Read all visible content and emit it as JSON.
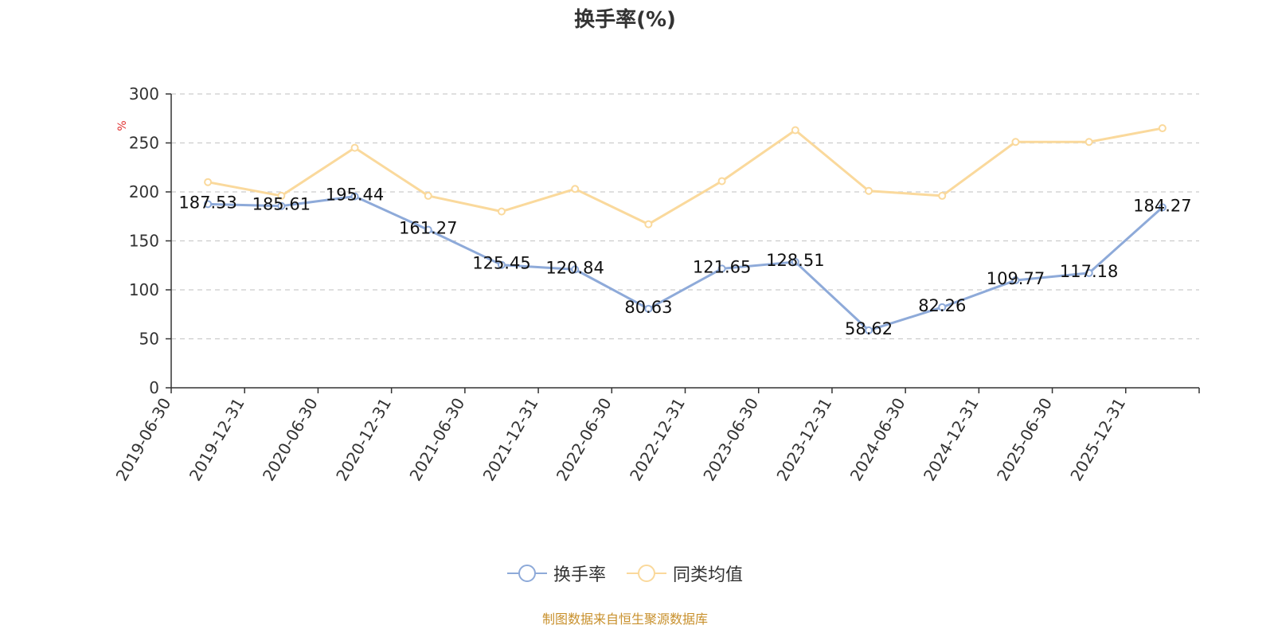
{
  "chart_data": {
    "type": "line",
    "title": "换手率(%)",
    "ylabel": "%",
    "xlabel": "",
    "ylim": [
      0,
      300
    ],
    "yticks": [
      0,
      50,
      100,
      150,
      200,
      250,
      300
    ],
    "categories": [
      "2019-06-30",
      "2019-12-31",
      "2020-06-30",
      "2020-12-31",
      "2021-06-30",
      "2021-12-31",
      "2022-06-30",
      "2022-12-31",
      "2023-06-30",
      "2023-12-31",
      "2024-06-30",
      "2024-12-31",
      "2025-06-30",
      "2025-12-31"
    ],
    "series": [
      {
        "name": "换手率",
        "color": "#8eaad9",
        "show_labels": true,
        "values": [
          187.53,
          185.61,
          195.44,
          161.27,
          125.45,
          120.84,
          80.63,
          121.65,
          128.51,
          58.62,
          82.26,
          109.77,
          117.18,
          184.27
        ]
      },
      {
        "name": "同类均值",
        "color": "#fad99c",
        "show_labels": false,
        "values": [
          210,
          196,
          245,
          196,
          180,
          203,
          167,
          211,
          263,
          201,
          196,
          251,
          251,
          265
        ]
      }
    ],
    "grid": true,
    "legend_position": "bottom"
  },
  "source_note": "制图数据来自恒生聚源数据库"
}
